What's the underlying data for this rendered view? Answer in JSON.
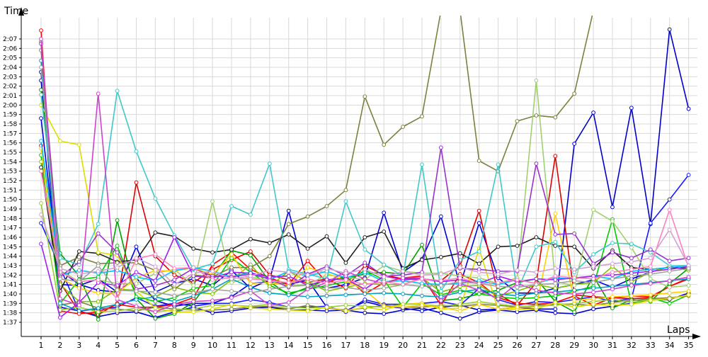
{
  "chart_data": {
    "type": "line",
    "title": "",
    "ylabel": "Time",
    "xlabel": "Laps",
    "x_categories": [
      "1",
      "2",
      "3",
      "4",
      "5",
      "6",
      "7",
      "8",
      "9",
      "10",
      "11",
      "12",
      "13",
      "14",
      "15",
      "16",
      "17",
      "18",
      "19",
      "20",
      "21",
      "22",
      "23",
      "24",
      "25",
      "26",
      "27",
      "28",
      "29",
      "30",
      "31",
      "32",
      "33",
      "34",
      "35"
    ],
    "y_ticks": [
      "1:37",
      "1:38",
      "1:39",
      "1:40",
      "1:41",
      "1:42",
      "1:43",
      "1:44",
      "1:45",
      "1:46",
      "1:47",
      "1:48",
      "1:49",
      "1:50",
      "1:51",
      "1:52",
      "1:53",
      "1:54",
      "1:55",
      "1:56",
      "1:57",
      "1:58",
      "1:59",
      "2:00",
      "2:01",
      "2:02",
      "2:03",
      "2:04",
      "2:05",
      "2:06",
      "2:07"
    ],
    "y_tick_seconds": [
      97,
      98,
      99,
      100,
      101,
      102,
      103,
      104,
      105,
      106,
      107,
      108,
      109,
      110,
      111,
      112,
      113,
      114,
      115,
      116,
      117,
      118,
      119,
      120,
      121,
      122,
      123,
      124,
      125,
      126,
      127
    ],
    "ylim_seconds": [
      96.1,
      128.8
    ],
    "grid": true,
    "legend": "none",
    "series": [
      {
        "color": "#0000cc",
        "values": [
          123.5,
          98.6,
          98.2,
          97.6,
          98.0,
          98.1,
          97.5,
          98.1,
          98.6,
          98.0,
          98.2,
          98.5,
          98.6,
          98.3,
          98.3,
          98.2,
          98.3,
          98.0,
          97.9,
          98.3,
          98.5,
          98.0,
          97.4,
          98.1,
          98.3,
          98.1,
          98.3,
          98.0,
          97.9,
          98.4,
          98.7,
          99.0,
          99.4,
          99.4,
          100.1
        ]
      },
      {
        "color": "#0000cc",
        "values": [
          122.6,
          102.5,
          101.0,
          100.4,
          100.2,
          101.7,
          99.3,
          98.7,
          99.0,
          99.0,
          99.7,
          101.1,
          101.3,
          101.0,
          101.5,
          98.6,
          98.2,
          99.2,
          98.7,
          98.5,
          98.2,
          98.6,
          98.8,
          98.3,
          98.4,
          98.6,
          98.4,
          98.4,
          115.9,
          119.2,
          109.2,
          119.7,
          107.4,
          128.0,
          119.6
        ]
      },
      {
        "color": "#1a1aff",
        "values": [
          107.5,
          102.8,
          98.2,
          98.4,
          98.6,
          99.6,
          98.7,
          99.0,
          98.7,
          99.0,
          99.0,
          99.4,
          99.1,
          98.6,
          98.6,
          98.7,
          98.1,
          99.4,
          98.9,
          98.9,
          99.0,
          99.2,
          98.8,
          100.6,
          99.4,
          98.8,
          99.2,
          99.1,
          99.4,
          99.7,
          99.2,
          99.5,
          107.5,
          110.0,
          112.6
        ]
      },
      {
        "color": "#0000dd",
        "values": [
          118.6,
          101.0,
          100.9,
          101.6,
          100.2,
          105.0,
          100.2,
          101.1,
          101.6,
          100.9,
          102.5,
          100.6,
          101.5,
          108.8,
          101.1,
          100.6,
          101.0,
          101.7,
          108.6,
          102.3,
          103.7,
          108.2,
          100.9,
          107.5,
          101.7,
          100.1,
          100.1,
          100.6,
          101.0,
          101.5,
          100.7,
          101.6,
          102.3,
          102.9,
          102.6
        ]
      },
      {
        "color": "#e00000",
        "values": [
          115.7,
          101.2,
          98.1,
          97.8,
          99.0,
          111.8,
          104.0,
          102.0,
          101.2,
          102.6,
          103.6,
          104.5,
          102.0,
          101.5,
          101.2,
          101.6,
          100.6,
          103.0,
          102.0,
          101.6,
          101.6,
          101.4,
          103.0,
          108.8,
          100.0,
          98.8,
          101.2,
          114.6,
          99.9,
          99.7,
          99.6,
          99.5,
          99.6,
          100.8,
          101.6
        ]
      },
      {
        "color": "#ff0000",
        "values": [
          127.9,
          98.2,
          97.9,
          98.1,
          98.9,
          98.6,
          98.6,
          98.9,
          99.6,
          103.1,
          104.4,
          102.6,
          101.7,
          101.0,
          103.5,
          101.2,
          101.9,
          100.0,
          101.2,
          101.7,
          101.9,
          98.8,
          102.1,
          101.2,
          99.6,
          99.0,
          98.9,
          99.1,
          99.8,
          98.8,
          99.6,
          99.8,
          99.7,
          100.8,
          101.7
        ]
      },
      {
        "color": "#00a000",
        "values": [
          121.6,
          104.3,
          101.9,
          97.3,
          107.8,
          99.5,
          97.4,
          97.9,
          99.1,
          101.8,
          104.6,
          104.1,
          101.3,
          99.9,
          100.7,
          101.5,
          101.7,
          102.1,
          102.3,
          102.1,
          105.2,
          99.3,
          99.5,
          100.0,
          100.4,
          101.2,
          101.6,
          99.2,
          98.1,
          101.9,
          98.5,
          99.4,
          99.2,
          101.1,
          102.7
        ]
      },
      {
        "color": "#00cc00",
        "values": [
          114.7,
          99.0,
          101.5,
          101.8,
          105.1,
          99.7,
          99.2,
          99.6,
          100.6,
          100.9,
          103.8,
          102.3,
          100.9,
          100.1,
          100.5,
          100.9,
          101.3,
          102.5,
          101.5,
          98.6,
          101.1,
          99.9,
          100.4,
          100.0,
          99.7,
          99.5,
          99.6,
          99.8,
          100.3,
          100.8,
          107.9,
          98.9,
          99.6,
          99.0,
          99.9
        ]
      },
      {
        "color": "#80c000",
        "values": [
          114.0,
          101.0,
          99.2,
          99.2,
          100.5,
          100.4,
          99.7,
          100.7,
          100.2,
          100.0,
          101.5,
          103.1,
          100.8,
          102.4,
          101.3,
          100.3,
          100.7,
          101.1,
          101.0,
          101.0,
          101.7,
          100.2,
          100.8,
          100.9,
          99.8,
          100.3,
          101.0,
          100.6,
          101.0,
          101.2,
          102.9,
          101.3,
          102.3,
          102.9,
          102.5
        ]
      },
      {
        "color": "#202020",
        "values": [
          113.4,
          100.3,
          104.5,
          104.3,
          103.4,
          103.6,
          106.5,
          106.1,
          104.8,
          104.4,
          104.7,
          105.8,
          105.4,
          106.3,
          104.8,
          106.1,
          103.3,
          106.0,
          106.6,
          102.7,
          103.6,
          103.9,
          104.3,
          103.2,
          105.0,
          105.1,
          106.0,
          105.1,
          105.0,
          102.7,
          104.6,
          102.8,
          102.6,
          102.8,
          102.7
        ]
      },
      {
        "color": "#7f7f3f",
        "values": [
          125.8,
          103.0,
          103.9,
          103.2,
          103.3,
          103.3,
          102.5,
          100.5,
          102.0,
          101.8,
          102.8,
          102.8,
          104.0,
          107.4,
          108.2,
          109.3,
          111.0,
          120.9,
          115.8,
          117.7,
          118.8,
          130.0,
          130.0,
          114.1,
          113.0,
          118.3,
          118.9,
          118.7,
          121.2,
          130.0,
          130.0,
          130.0,
          130.0,
          130.0,
          130.0
        ]
      },
      {
        "color": "#808040",
        "values": [
          126.7,
          98.8,
          99.2,
          98.5,
          98.4,
          98.2,
          98.6,
          98.4,
          98.3,
          98.3,
          98.4,
          98.6,
          98.7,
          98.4,
          98.8,
          98.5,
          98.3,
          98.5,
          98.8,
          98.6,
          98.6,
          98.8,
          98.7,
          98.9,
          98.8,
          98.6,
          98.8,
          98.9,
          98.9,
          98.8,
          99.1,
          99.3,
          99.5,
          99.6,
          99.8
        ]
      },
      {
        "color": "#9acd32",
        "values": [
          109.6,
          98.3,
          98.6,
          98.1,
          98.2,
          98.5,
          98.1,
          98.3,
          98.4,
          98.8,
          98.8,
          98.7,
          98.9,
          98.6,
          98.5,
          98.6,
          98.8,
          98.7,
          98.6,
          98.9,
          98.9,
          98.7,
          98.9,
          99.2,
          98.9,
          98.7,
          98.7,
          98.8,
          99.0,
          99.2,
          99.4,
          99.1,
          99.4,
          99.5,
          99.9
        ]
      },
      {
        "color": "#a0d070",
        "values": [
          124.0,
          102.5,
          101.3,
          101.5,
          101.1,
          101.1,
          102.2,
          102.6,
          100.9,
          109.8,
          101.2,
          101.8,
          101.4,
          100.9,
          101.0,
          102.0,
          101.8,
          101.5,
          103.0,
          102.4,
          102.2,
          102.2,
          101.9,
          101.7,
          101.1,
          101.7,
          122.6,
          101.3,
          100.9,
          108.9,
          107.7,
          104.9,
          101.6,
          100.7,
          100.9
        ]
      },
      {
        "color": "#dddd00",
        "values": [
          120.0,
          116.2,
          115.8,
          104.4,
          104.1,
          100.3,
          98.5,
          98.1,
          98.1,
          98.4,
          98.9,
          98.5,
          98.4,
          98.3,
          98.2,
          98.6,
          98.2,
          98.6,
          98.3,
          98.9,
          99.0,
          98.4,
          98.5,
          104.8,
          98.3,
          98.4,
          98.4,
          99.1,
          98.6,
          98.9,
          98.8,
          98.9,
          99.3,
          99.5,
          99.9
        ]
      },
      {
        "color": "#ffd000",
        "values": [
          115.4,
          101.7,
          100.6,
          100.1,
          100.1,
          101.7,
          102.5,
          102.4,
          102.8,
          102.0,
          104.2,
          101.1,
          101.2,
          100.9,
          102.8,
          102.2,
          101.4,
          100.4,
          98.7,
          98.6,
          98.8,
          98.6,
          98.2,
          98.9,
          98.4,
          98.6,
          98.6,
          108.5,
          99.3,
          99.5,
          99.7,
          99.8,
          99.9,
          100.1,
          100.3
        ]
      },
      {
        "color": "#00a0c0",
        "values": [
          124.7,
          99.0,
          98.2,
          98.5,
          98.9,
          99.4,
          99.7,
          99.2,
          99.8,
          100.5,
          101.6,
          100.7,
          100.1,
          99.9,
          99.7,
          99.8,
          99.9,
          100.0,
          100.1,
          100.0,
          99.8,
          99.7,
          100.2,
          100.5,
          100.0,
          99.8,
          100.1,
          100.2,
          100.4,
          100.6,
          100.8,
          101.0,
          101.2,
          101.4,
          101.6
        ]
      },
      {
        "color": "#40c8c8",
        "values": [
          121.1,
          103.8,
          103.1,
          107.4,
          121.5,
          115.1,
          110.1,
          106.2,
          102.6,
          103.2,
          109.3,
          108.4,
          113.8,
          102.6,
          102.1,
          101.6,
          109.8,
          104.7,
          103.1,
          101.9,
          113.7,
          100.3,
          103.6,
          104.5,
          113.7,
          100.3,
          105.0,
          105.5,
          102.3,
          104.2,
          105.4,
          105.3,
          104.4,
          103.0,
          103.0
        ]
      },
      {
        "color": "#00c0ff",
        "values": [
          116.2,
          102.0,
          102.5,
          102.2,
          102.5,
          101.8,
          101.4,
          102.5,
          102.8,
          102.4,
          101.8,
          102.3,
          101.5,
          102.4,
          101.9,
          102.4,
          101.7,
          102.3,
          101.3,
          101.4,
          101.1,
          101.0,
          101.1,
          101.4,
          101.0,
          101.5,
          101.1,
          101.7,
          101.6,
          101.9,
          101.6,
          102.4,
          102.6,
          102.8,
          103.0
        ]
      },
      {
        "color": "#9932cc",
        "values": [
          126.5,
          101.8,
          103.4,
          106.4,
          104.4,
          100.5,
          100.9,
          101.5,
          102.7,
          101.9,
          101.8,
          102.1,
          101.6,
          100.7,
          102.1,
          102.9,
          101.9,
          103.3,
          101.9,
          102.0,
          102.3,
          115.5,
          102.7,
          102.6,
          102.4,
          102.4,
          113.8,
          106.3,
          106.4,
          103.2,
          104.4,
          103.8,
          104.7,
          103.5,
          103.8
        ]
      },
      {
        "color": "#a020f0",
        "values": [
          105.3,
          97.5,
          99.1,
          101.2,
          100.9,
          102.3,
          101.4,
          106.0,
          101.9,
          101.7,
          102.3,
          102.2,
          101.8,
          101.9,
          100.9,
          101.5,
          101.6,
          100.5,
          101.9,
          101.5,
          101.6,
          101.3,
          101.5,
          101.1,
          101.9,
          101.3,
          101.6,
          101.5,
          101.7,
          101.9,
          102.0,
          102.2,
          102.4,
          102.6,
          102.9
        ]
      },
      {
        "color": "#cc44cc",
        "values": [
          127.0,
          99.5,
          98.8,
          121.2,
          99.4,
          98.7,
          98.1,
          98.9,
          99.2,
          99.3,
          99.6,
          100.3,
          98.8,
          99.1,
          100.5,
          101.2,
          102.4,
          101.6,
          101.1,
          101.7,
          101.7,
          99.3,
          101.1,
          100.4,
          99.5,
          101.1,
          100.4,
          100.1,
          100.0,
          100.2,
          100.5,
          100.9,
          101.1,
          101.4,
          101.8
        ]
      },
      {
        "color": "#ff80c0",
        "values": [
          113.0,
          102.3,
          101.3,
          101.5,
          99.5,
          103.7,
          104.2,
          102.7,
          102.8,
          101.5,
          101.7,
          101.6,
          101.4,
          101.2,
          101.6,
          101.1,
          101.5,
          101.0,
          101.3,
          101.0,
          101.6,
          101.4,
          101.7,
          101.1,
          101.2,
          101.5,
          101.1,
          101.9,
          101.7,
          101.6,
          102.3,
          102.6,
          102.9,
          108.9,
          102.8
        ]
      },
      {
        "color": "#d4a0d4",
        "values": [
          108.4,
          102.7,
          102.1,
          102.4,
          102.8,
          103.8,
          102.9,
          101.0,
          102.2,
          102.4,
          101.6,
          101.9,
          102.5,
          102.3,
          102.0,
          102.7,
          102.2,
          102.6,
          101.8,
          102.4,
          102.0,
          102.1,
          102.8,
          102.3,
          102.1,
          102.5,
          102.3,
          102.7,
          102.6,
          102.9,
          103.2,
          103.4,
          103.8,
          106.8,
          103.0
        ]
      },
      {
        "color": "#a0a0a0",
        "values": [
          124.0,
          101.6,
          101.3,
          103.0,
          100.4,
          100.3,
          100.2,
          99.8,
          100.1,
          100.5,
          100.3,
          100.1,
          100.5,
          100.8,
          100.9,
          100.6,
          100.7,
          100.4,
          100.6,
          101.0,
          100.8,
          100.9,
          101.3,
          101.1,
          100.8,
          100.7,
          101.0,
          101.1,
          101.4,
          101.2,
          101.6,
          101.9,
          102.1,
          102.4,
          102.7
        ]
      }
    ]
  }
}
